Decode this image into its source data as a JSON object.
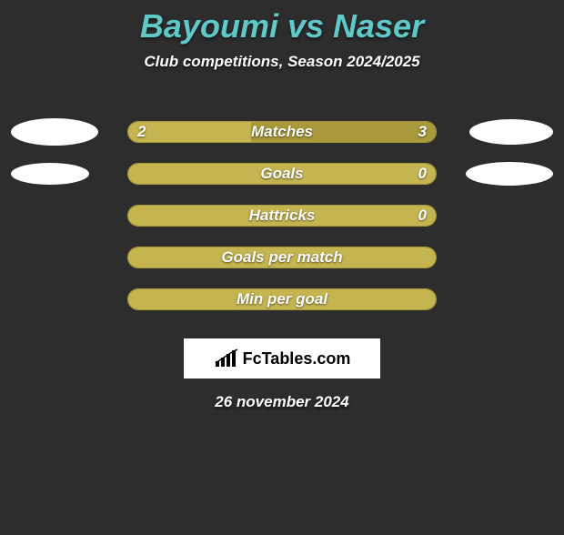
{
  "header": {
    "title": "Bayoumi vs Naser",
    "subtitle": "Club competitions, Season 2024/2025"
  },
  "colors": {
    "background": "#2d2d2d",
    "title": "#5fc9c9",
    "bar_primary": "#a89a3b",
    "bar_secondary": "#c4b551",
    "bar_border": "#a89a3b",
    "ellipse": "#ffffff",
    "text": "#ffffff",
    "logo_bg": "#ffffff"
  },
  "ellipse_sizes": {
    "row0_left": {
      "w": 96,
      "h": 30
    },
    "row0_right": {
      "w": 92,
      "h": 28
    },
    "row1_left": {
      "w": 86,
      "h": 24
    },
    "row1_right": {
      "w": 96,
      "h": 26
    }
  },
  "rows": [
    {
      "label": "Matches",
      "left_val": "2",
      "right_val": "3",
      "left_fill_pct": 40,
      "right_fill_pct": 60,
      "show_values": true,
      "show_left_ellipse": true,
      "show_right_ellipse": true
    },
    {
      "label": "Goals",
      "left_val": "",
      "right_val": "0",
      "left_fill_pct": 100,
      "right_fill_pct": 0,
      "show_values": true,
      "show_left_ellipse": true,
      "show_right_ellipse": true
    },
    {
      "label": "Hattricks",
      "left_val": "",
      "right_val": "0",
      "left_fill_pct": 100,
      "right_fill_pct": 0,
      "show_values": true,
      "show_left_ellipse": false,
      "show_right_ellipse": false
    },
    {
      "label": "Goals per match",
      "left_val": "",
      "right_val": "",
      "left_fill_pct": 100,
      "right_fill_pct": 0,
      "show_values": false,
      "show_left_ellipse": false,
      "show_right_ellipse": false
    },
    {
      "label": "Min per goal",
      "left_val": "",
      "right_val": "",
      "left_fill_pct": 100,
      "right_fill_pct": 0,
      "show_values": false,
      "show_left_ellipse": false,
      "show_right_ellipse": false
    }
  ],
  "footer": {
    "logo_text": "FcTables.com",
    "date": "26 november 2024"
  }
}
